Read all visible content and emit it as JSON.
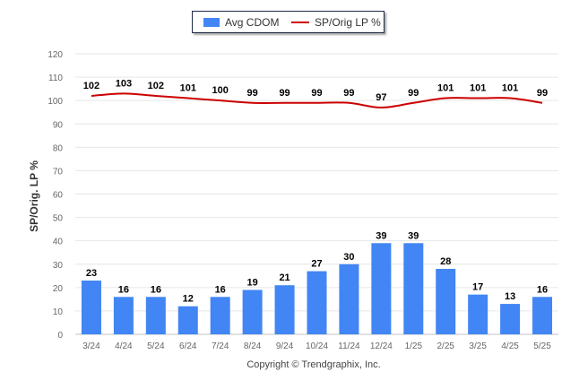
{
  "legend": {
    "bar_label": "Avg CDOM",
    "line_label": "SP/Orig LP %"
  },
  "y_axis_title": "SP/Orig. LP %",
  "credits": "Copyright © Trendgraphix, Inc.",
  "colors": {
    "bar": "#4285f4",
    "line": "#cc0000",
    "grid": "#e6e6e6",
    "axis_text": "#666666",
    "label_text": "#000000"
  },
  "chart_data": {
    "type": "bar",
    "categories": [
      "3/24",
      "4/24",
      "5/24",
      "6/24",
      "7/24",
      "8/24",
      "9/24",
      "10/24",
      "11/24",
      "12/24",
      "1/25",
      "2/25",
      "3/25",
      "4/25",
      "5/25"
    ],
    "series": [
      {
        "name": "Avg CDOM",
        "type": "bar",
        "values": [
          23,
          16,
          16,
          12,
          16,
          19,
          21,
          27,
          30,
          39,
          39,
          28,
          17,
          13,
          16
        ]
      },
      {
        "name": "SP/Orig LP %",
        "type": "line",
        "values": [
          102,
          103,
          102,
          101,
          100,
          99,
          99,
          99,
          99,
          97,
          99,
          101,
          101,
          101,
          99
        ]
      }
    ],
    "ylabel": "SP/Orig. LP %",
    "xlabel": "",
    "ylim": [
      0,
      120
    ],
    "yticks": [
      0,
      10,
      20,
      30,
      40,
      50,
      60,
      70,
      80,
      90,
      100,
      110,
      120
    ],
    "grid": true,
    "legend_position": "top-center"
  }
}
